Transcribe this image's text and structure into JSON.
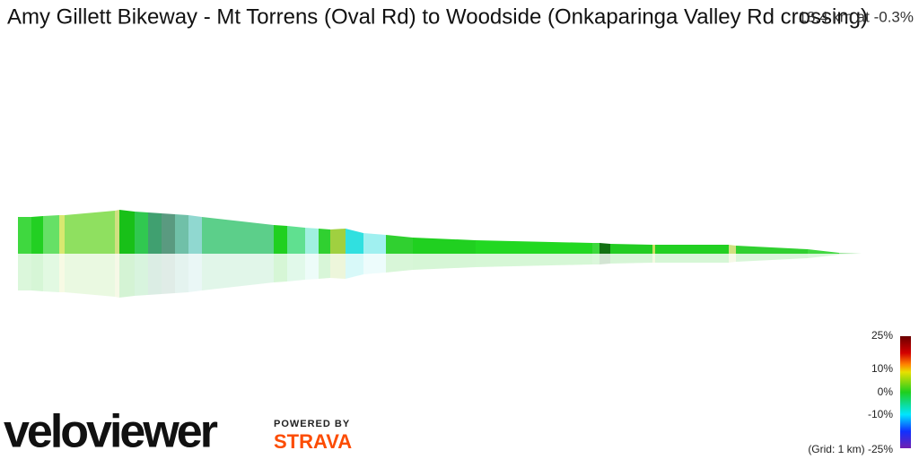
{
  "header": {
    "title": "Amy Gillett Bikeway - Mt Torrens (Oval Rd) to Woodside (Onkaparinga Valley Rd crossing)",
    "summary": "18.4 km at -0.3%"
  },
  "legend": {
    "labels": [
      "25%",
      "10%",
      "0%",
      "-10%",
      "(Grid: 1 km) -25%"
    ]
  },
  "footer": {
    "logo": "veloviewer",
    "powered_by": "POWERED BY",
    "provider": "STRAVA"
  }
}
